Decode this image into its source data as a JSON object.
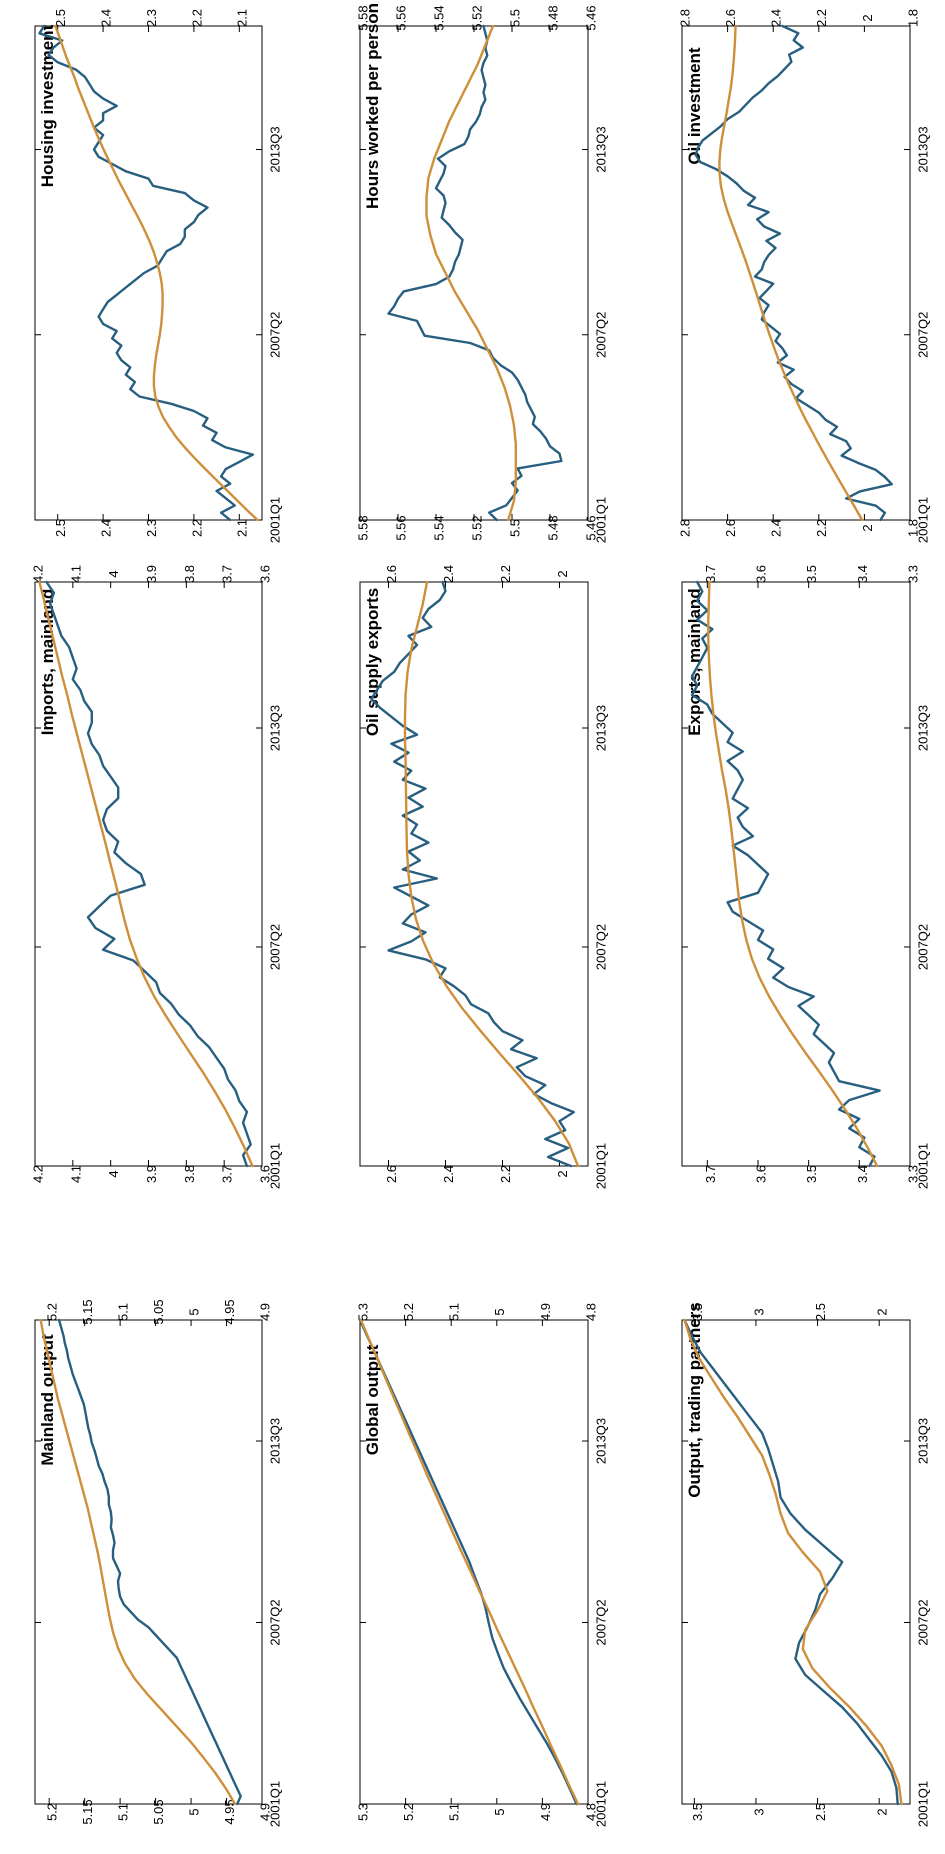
{
  "chart_data": [
    {
      "type": "line",
      "title": "Housing investment",
      "x_ticks": [
        "2001Q1",
        "2007Q2",
        "2013Q3"
      ],
      "ylim": [
        2.05,
        2.55
      ],
      "y_ticks": [
        2.1,
        2.2,
        2.3,
        2.4,
        2.5
      ],
      "series": [
        {
          "values": [
            2.12,
            2.14,
            2.11,
            2.13,
            2.15,
            2.12,
            2.14,
            2.13,
            2.1,
            2.07,
            2.13,
            2.16,
            2.15,
            2.18,
            2.17,
            2.2,
            2.25,
            2.32,
            2.34,
            2.33,
            2.35,
            2.34,
            2.36,
            2.37,
            2.36,
            2.38,
            2.37,
            2.4,
            2.41,
            2.4,
            2.39,
            2.37,
            2.35,
            2.33,
            2.31,
            2.28,
            2.27,
            2.26,
            2.23,
            2.22,
            2.22,
            2.2,
            2.19,
            2.17,
            2.2,
            2.22,
            2.29,
            2.3,
            2.35,
            2.38,
            2.41,
            2.42,
            2.41,
            2.4,
            2.42,
            2.4,
            2.4,
            2.37,
            2.4,
            2.42,
            2.43,
            2.44,
            2.46,
            2.5,
            2.52,
            2.51,
            2.49,
            2.54,
            2.53
          ]
        },
        {
          "values": [
            2.06,
            2.084,
            2.107,
            2.13,
            2.153,
            2.176,
            2.198,
            2.219,
            2.238,
            2.254,
            2.268,
            2.278,
            2.285,
            2.288,
            2.288,
            2.286,
            2.283,
            2.279,
            2.275,
            2.272,
            2.27,
            2.269,
            2.269,
            2.271,
            2.275,
            2.281,
            2.288,
            2.297,
            2.307,
            2.318,
            2.33,
            2.342,
            2.354,
            2.366,
            2.377,
            2.388,
            2.399,
            2.409,
            2.419,
            2.428,
            2.437,
            2.446,
            2.455,
            2.463,
            2.472,
            2.481,
            2.489,
            2.497,
            2.505
          ]
        }
      ]
    },
    {
      "type": "line",
      "title": "Hours worked per person",
      "x_ticks": [
        "2001Q1",
        "2007Q2",
        "2013Q3"
      ],
      "ylim": [
        5.46,
        5.58
      ],
      "y_ticks": [
        5.46,
        5.48,
        5.5,
        5.52,
        5.54,
        5.56,
        5.58
      ],
      "series": [
        {
          "values": [
            5.508,
            5.512,
            5.503,
            5.5,
            5.497,
            5.5,
            5.495,
            5.497,
            5.474,
            5.475,
            5.48,
            5.482,
            5.485,
            5.489,
            5.488,
            5.49,
            5.492,
            5.493,
            5.495,
            5.497,
            5.5,
            5.506,
            5.51,
            5.512,
            5.522,
            5.546,
            5.548,
            5.55,
            5.565,
            5.562,
            5.56,
            5.557,
            5.54,
            5.533,
            5.531,
            5.53,
            5.528,
            5.527,
            5.526,
            5.53,
            5.533,
            5.537,
            5.536,
            5.535,
            5.536,
            5.54,
            5.538,
            5.536,
            5.535,
            5.539,
            5.533,
            5.525,
            5.523,
            5.522,
            5.519,
            5.517,
            5.516,
            5.514,
            5.515,
            5.514,
            5.515,
            5.516,
            5.515,
            5.513,
            5.514,
            5.513,
            5.514,
            5.515
          ]
        },
        {
          "values": [
            5.502,
            5.499,
            5.498,
            5.498,
            5.498,
            5.499,
            5.501,
            5.504,
            5.508,
            5.513,
            5.518,
            5.524,
            5.53,
            5.535,
            5.54,
            5.543,
            5.545,
            5.545,
            5.544,
            5.541,
            5.537,
            5.533,
            5.528,
            5.523,
            5.518,
            5.514,
            5.51
          ]
        }
      ]
    },
    {
      "type": "line",
      "title": "Oil investment",
      "x_ticks": [
        "2001Q1",
        "2007Q2",
        "2013Q3"
      ],
      "ylim": [
        1.8,
        2.8
      ],
      "y_ticks": [
        1.8,
        2,
        2.2,
        2.4,
        2.6,
        2.8
      ],
      "series": [
        {
          "values": [
            1.93,
            1.91,
            1.95,
            2.08,
            2.02,
            1.88,
            1.91,
            1.95,
            2.03,
            2.1,
            2.06,
            2.08,
            2.15,
            2.12,
            2.17,
            2.2,
            2.25,
            2.3,
            2.27,
            2.32,
            2.35,
            2.31,
            2.38,
            2.34,
            2.36,
            2.39,
            2.37,
            2.41,
            2.45,
            2.44,
            2.42,
            2.46,
            2.43,
            2.4,
            2.48,
            2.45,
            2.44,
            2.42,
            2.39,
            2.43,
            2.37,
            2.44,
            2.47,
            2.42,
            2.51,
            2.48,
            2.53,
            2.56,
            2.6,
            2.65,
            2.72,
            2.74,
            2.73,
            2.71,
            2.67,
            2.63,
            2.6,
            2.55,
            2.52,
            2.49,
            2.45,
            2.42,
            2.38,
            2.35,
            2.32,
            2.33,
            2.27,
            2.31,
            2.29,
            2.36
          ]
        },
        {
          "values": [
            2.01,
            2.041,
            2.072,
            2.104,
            2.135,
            2.166,
            2.196,
            2.225,
            2.254,
            2.281,
            2.307,
            2.332,
            2.355,
            2.377,
            2.397,
            2.416,
            2.434,
            2.451,
            2.468,
            2.485,
            2.503,
            2.521,
            2.541,
            2.561,
            2.581,
            2.601,
            2.617,
            2.629,
            2.635,
            2.636,
            2.632,
            2.624,
            2.614,
            2.604,
            2.595,
            2.586,
            2.579,
            2.574,
            2.57,
            2.567,
            2.565
          ]
        }
      ]
    },
    {
      "type": "line",
      "title": "Imports, mainland",
      "x_ticks": [
        "2001Q1",
        "2007Q2",
        "2013Q3"
      ],
      "ylim": [
        3.6,
        4.2
      ],
      "y_ticks": [
        3.6,
        3.7,
        3.8,
        3.9,
        4,
        4.1,
        4.2
      ],
      "series": [
        {
          "values": [
            3.64,
            3.65,
            3.63,
            3.64,
            3.65,
            3.64,
            3.66,
            3.67,
            3.69,
            3.7,
            3.72,
            3.74,
            3.77,
            3.79,
            3.82,
            3.84,
            3.87,
            3.88,
            3.91,
            3.94,
            4.02,
            3.99,
            4.04,
            4.06,
            4.03,
            4.0,
            3.91,
            3.92,
            3.96,
            3.99,
            3.98,
            4.01,
            4.02,
            4.01,
            3.98,
            3.98,
            4.0,
            4.02,
            4.03,
            4.05,
            4.06,
            4.05,
            4.05,
            4.07,
            4.08,
            4.1,
            4.09,
            4.1,
            4.11,
            4.13,
            4.14,
            4.15,
            4.16,
            4.15,
            4.17
          ]
        },
        {
          "values": [
            3.625,
            3.647,
            3.671,
            3.697,
            3.726,
            3.757,
            3.79,
            3.823,
            3.855,
            3.885,
            3.91,
            3.931,
            3.949,
            3.963,
            3.975,
            3.987,
            4,
            4.012,
            4.025,
            4.038,
            4.051,
            4.064,
            4.077,
            4.09,
            4.103,
            4.115,
            4.128,
            4.14,
            4.152,
            4.164,
            4.176,
            4.188
          ]
        }
      ]
    },
    {
      "type": "line",
      "title": "Oil supply exports",
      "x_ticks": [
        "2001Q1",
        "2007Q2",
        "2013Q3"
      ],
      "ylim": [
        1.9,
        2.7
      ],
      "y_ticks": [
        2,
        2.2,
        2.4,
        2.6
      ],
      "series": [
        {
          "values": [
            1.96,
            2.04,
            1.97,
            2.05,
            1.98,
            2.0,
            1.95,
            2.03,
            2.09,
            2.05,
            2.12,
            2.15,
            2.08,
            2.17,
            2.13,
            2.2,
            2.23,
            2.25,
            2.31,
            2.33,
            2.37,
            2.42,
            2.4,
            2.47,
            2.6,
            2.52,
            2.47,
            2.55,
            2.52,
            2.46,
            2.52,
            2.58,
            2.43,
            2.55,
            2.49,
            2.53,
            2.46,
            2.52,
            2.5,
            2.55,
            2.48,
            2.53,
            2.47,
            2.55,
            2.52,
            2.58,
            2.53,
            2.59,
            2.5,
            2.55,
            2.59,
            2.63,
            2.66,
            2.64,
            2.62,
            2.58,
            2.56,
            2.53,
            2.5,
            2.53,
            2.45,
            2.48,
            2.46,
            2.42,
            2.4,
            2.41
          ]
        },
        {
          "values": [
            1.935,
            1.967,
            2.015,
            2.074,
            2.14,
            2.209,
            2.276,
            2.34,
            2.396,
            2.442,
            2.478,
            2.504,
            2.52,
            2.53,
            2.535,
            2.537,
            2.538,
            2.539,
            2.54,
            2.542,
            2.542,
            2.54,
            2.533,
            2.52,
            2.5,
            2.48,
            2.465
          ]
        }
      ]
    },
    {
      "type": "line",
      "title": "Exports, mainland",
      "x_ticks": [
        "2001Q1",
        "2007Q2",
        "2013Q3"
      ],
      "ylim": [
        3.3,
        3.75
      ],
      "y_ticks": [
        3.3,
        3.4,
        3.5,
        3.6,
        3.7
      ],
      "series": [
        {
          "values": [
            3.38,
            3.37,
            3.4,
            3.39,
            3.42,
            3.4,
            3.44,
            3.42,
            3.36,
            3.44,
            3.45,
            3.46,
            3.45,
            3.47,
            3.49,
            3.48,
            3.5,
            3.52,
            3.49,
            3.54,
            3.57,
            3.55,
            3.58,
            3.57,
            3.6,
            3.59,
            3.62,
            3.65,
            3.66,
            3.6,
            3.59,
            3.58,
            3.6,
            3.62,
            3.65,
            3.61,
            3.63,
            3.64,
            3.62,
            3.65,
            3.64,
            3.63,
            3.64,
            3.66,
            3.63,
            3.66,
            3.65,
            3.67,
            3.69,
            3.7,
            3.73,
            3.72,
            3.73,
            3.72,
            3.71,
            3.7,
            3.71,
            3.69,
            3.72,
            3.7,
            3.72,
            3.71,
            3.72
          ]
        },
        {
          "values": [
            3.365,
            3.384,
            3.405,
            3.428,
            3.453,
            3.479,
            3.506,
            3.532,
            3.556,
            3.578,
            3.597,
            3.612,
            3.623,
            3.631,
            3.637,
            3.641,
            3.645,
            3.649,
            3.653,
            3.658,
            3.664,
            3.671,
            3.677,
            3.683,
            3.688,
            3.692,
            3.695,
            3.697,
            3.698,
            3.698,
            3.697,
            3.696
          ]
        }
      ]
    },
    {
      "type": "line",
      "title": "Mainland output",
      "x_ticks": [
        "2001Q1",
        "2007Q2",
        "2013Q3"
      ],
      "ylim": [
        4.9,
        5.22
      ],
      "y_ticks": [
        4.9,
        4.95,
        5,
        5.05,
        5.1,
        5.15,
        5.2
      ],
      "series": [
        {
          "values": [
            4.935,
            4.93,
            4.935,
            4.94,
            4.945,
            4.95,
            4.955,
            4.96,
            4.965,
            4.97,
            4.975,
            4.98,
            4.985,
            4.99,
            4.995,
            5.0,
            5.005,
            5.01,
            5.015,
            5.02,
            5.03,
            5.04,
            5.05,
            5.06,
            5.075,
            5.085,
            5.095,
            5.1,
            5.102,
            5.103,
            5.1,
            5.105,
            5.11,
            5.11,
            5.108,
            5.11,
            5.113,
            5.112,
            5.113,
            5.116,
            5.116,
            5.118,
            5.122,
            5.125,
            5.13,
            5.133,
            5.136,
            5.14,
            5.142,
            5.145,
            5.147,
            5.149,
            5.151,
            5.155,
            5.159,
            5.163,
            5.167,
            5.17,
            5.173,
            5.175,
            5.178,
            5.18,
            5.183,
            5.186
          ]
        },
        {
          "values": [
            4.938,
            4.951,
            4.966,
            4.983,
            5.001,
            5.021,
            5.041,
            5.061,
            5.079,
            5.093,
            5.103,
            5.11,
            5.115,
            5.119,
            5.123,
            5.127,
            5.131,
            5.136,
            5.141,
            5.146,
            5.152,
            5.158,
            5.164,
            5.17,
            5.176,
            5.182,
            5.188,
            5.193,
            5.198,
            5.203,
            5.208,
            5.212
          ]
        }
      ]
    },
    {
      "type": "line",
      "title": "Global output",
      "x_ticks": [
        "2001Q1",
        "2007Q2",
        "2013Q3"
      ],
      "ylim": [
        4.8,
        5.3
      ],
      "y_ticks": [
        4.8,
        4.9,
        5,
        5.1,
        5.2,
        5.3
      ],
      "series": [
        {
          "values": [
            4.825,
            4.84,
            4.855,
            4.872,
            4.89,
            4.91,
            4.93,
            4.95,
            4.968,
            4.985,
            4.998,
            5.01,
            5.018,
            5.025,
            5.035,
            5.048,
            5.06,
            5.075,
            5.09,
            5.105,
            5.12,
            5.135,
            5.15,
            5.165,
            5.18,
            5.195,
            5.21,
            5.225,
            5.24,
            5.255,
            5.27,
            5.285,
            5.3
          ]
        },
        {
          "values": [
            4.822,
            4.842,
            4.861,
            4.881,
            4.9,
            4.92,
            4.939,
            4.959,
            4.979,
            4.999,
            5.018,
            5.038,
            5.057,
            5.077,
            5.096,
            5.115,
            5.134,
            5.153,
            5.171,
            5.19,
            5.208,
            5.226,
            5.244,
            5.262,
            5.28,
            5.298
          ]
        }
      ]
    },
    {
      "type": "line",
      "title": "Output, trading partners",
      "x_ticks": [
        "2001Q1",
        "2007Q2",
        "2013Q3"
      ],
      "ylim": [
        1.75,
        3.6
      ],
      "y_ticks": [
        2,
        2.5,
        3,
        3.5
      ],
      "series": [
        {
          "values": [
            1.85,
            1.86,
            1.9,
            1.98,
            2.08,
            2.18,
            2.3,
            2.45,
            2.6,
            2.68,
            2.65,
            2.58,
            2.52,
            2.48,
            2.38,
            2.3,
            2.45,
            2.6,
            2.72,
            2.8,
            2.82,
            2.86,
            2.9,
            2.95,
            3.05,
            3.15,
            3.25,
            3.35,
            3.45,
            3.52,
            3.58
          ]
        },
        {
          "values": [
            1.82,
            1.84,
            1.9,
            1.98,
            2.1,
            2.24,
            2.4,
            2.54,
            2.62,
            2.6,
            2.5,
            2.42,
            2.48,
            2.62,
            2.74,
            2.8,
            2.84,
            2.89,
            2.95,
            3.05,
            3.15,
            3.26,
            3.36,
            3.46,
            3.53,
            3.58
          ]
        }
      ]
    }
  ]
}
